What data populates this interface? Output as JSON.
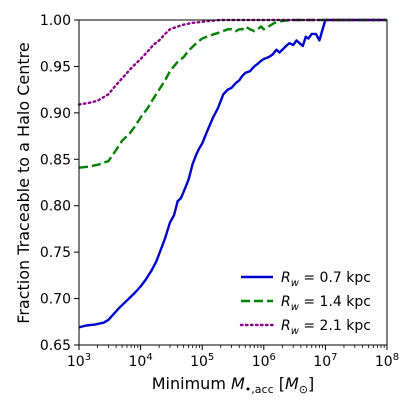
{
  "chart_data": {
    "type": "line",
    "title": "",
    "xlabel": "Minimum M•,acc [M⊙]",
    "xlabel_parts": [
      "Minimum ",
      "M",
      "•,acc",
      " [",
      "M",
      "⊙",
      "]"
    ],
    "ylabel": "Fraction Traceable to a Halo Centre",
    "xscale": "log",
    "xlim": [
      1000,
      100000000
    ],
    "ylim": [
      0.65,
      1.0
    ],
    "xticks": [
      {
        "value": 1000,
        "base": "10",
        "exp": "3"
      },
      {
        "value": 10000,
        "base": "10",
        "exp": "4"
      },
      {
        "value": 100000,
        "base": "10",
        "exp": "5"
      },
      {
        "value": 1000000,
        "base": "10",
        "exp": "6"
      },
      {
        "value": 10000000,
        "base": "10",
        "exp": "7"
      },
      {
        "value": 100000000,
        "base": "10",
        "exp": "8"
      }
    ],
    "yticks": [
      {
        "value": 0.65,
        "label": "0.65"
      },
      {
        "value": 0.7,
        "label": "0.70"
      },
      {
        "value": 0.75,
        "label": "0.75"
      },
      {
        "value": 0.8,
        "label": "0.80"
      },
      {
        "value": 0.85,
        "label": "0.85"
      },
      {
        "value": 0.9,
        "label": "0.90"
      },
      {
        "value": 0.95,
        "label": "0.95"
      },
      {
        "value": 1.0,
        "label": "1.00"
      }
    ],
    "grid": false,
    "legend_position": "bottom-right",
    "series": [
      {
        "name": "Rw = 0.7 kpc",
        "legend_symbol": "R",
        "legend_sub": "w",
        "legend_text": " = 0.7 kpc",
        "color": "#0000cd",
        "dash": "solid",
        "x": [
          1000,
          1300,
          1800,
          2500,
          3000,
          3500,
          4500,
          6000,
          8000,
          10000,
          12000,
          15000,
          18000,
          20000,
          25000,
          30000,
          35000,
          40000,
          45000,
          50000,
          60000,
          70000,
          80000,
          90000,
          100000,
          120000,
          150000,
          180000,
          220000,
          260000,
          300000,
          350000,
          400000,
          450000,
          500000,
          600000,
          700000,
          800000,
          900000,
          1000000,
          1200000,
          1400000,
          1600000,
          1800000,
          2000000,
          2300000,
          2600000,
          3000000,
          3400000,
          3800000,
          4300000,
          4800000,
          5300000,
          6000000,
          7000000,
          8000000,
          9000000,
          10000000,
          100000000
        ],
        "y": [
          0.669,
          0.671,
          0.672,
          0.674,
          0.677,
          0.682,
          0.69,
          0.698,
          0.706,
          0.713,
          0.72,
          0.73,
          0.74,
          0.748,
          0.765,
          0.782,
          0.79,
          0.805,
          0.808,
          0.815,
          0.828,
          0.845,
          0.855,
          0.862,
          0.867,
          0.88,
          0.895,
          0.905,
          0.92,
          0.925,
          0.927,
          0.932,
          0.935,
          0.94,
          0.943,
          0.945,
          0.95,
          0.953,
          0.956,
          0.958,
          0.96,
          0.963,
          0.968,
          0.965,
          0.968,
          0.972,
          0.975,
          0.973,
          0.978,
          0.975,
          0.972,
          0.982,
          0.98,
          0.985,
          0.985,
          0.978,
          0.99,
          1.0,
          1.0
        ]
      },
      {
        "name": "Rw = 1.4 kpc",
        "legend_symbol": "R",
        "legend_sub": "w",
        "legend_text": " = 1.4 kpc",
        "color": "#008000",
        "dash": "dashed",
        "x": [
          1000,
          1400,
          2000,
          3000,
          4000,
          5000,
          6500,
          8000,
          10000,
          13000,
          16000,
          20000,
          25000,
          30000,
          40000,
          50000,
          60000,
          80000,
          100000,
          130000,
          160000,
          200000,
          260000,
          300000,
          350000,
          400000,
          450000,
          500000,
          600000,
          700000,
          800000,
          900000,
          1000000,
          1200000,
          1500000,
          2000000,
          3000000,
          10000000,
          100000000
        ],
        "y": [
          0.841,
          0.842,
          0.844,
          0.848,
          0.86,
          0.87,
          0.877,
          0.885,
          0.895,
          0.905,
          0.915,
          0.925,
          0.935,
          0.945,
          0.955,
          0.96,
          0.967,
          0.975,
          0.98,
          0.983,
          0.985,
          0.987,
          0.99,
          0.99,
          0.988,
          0.99,
          0.99,
          0.993,
          0.99,
          0.988,
          0.99,
          0.993,
          0.99,
          0.993,
          0.997,
          0.999,
          1.0,
          1.0,
          1.0
        ]
      },
      {
        "name": "Rw = 2.1 kpc",
        "legend_symbol": "R",
        "legend_sub": "w",
        "legend_text": " = 2.1 kpc",
        "color": "#8b008b",
        "dash": "dotted",
        "x": [
          1000,
          1500,
          2000,
          3000,
          4000,
          5000,
          7000,
          10000,
          13000,
          16000,
          20000,
          25000,
          30000,
          40000,
          50000,
          70000,
          100000,
          130000,
          200000,
          300000,
          500000,
          1000000,
          10000000,
          100000000
        ],
        "y": [
          0.909,
          0.911,
          0.913,
          0.92,
          0.93,
          0.937,
          0.948,
          0.958,
          0.966,
          0.973,
          0.978,
          0.985,
          0.99,
          0.993,
          0.995,
          0.997,
          0.998,
          0.999,
          1.0,
          1.0,
          1.0,
          1.0,
          1.0,
          1.0
        ]
      }
    ]
  }
}
